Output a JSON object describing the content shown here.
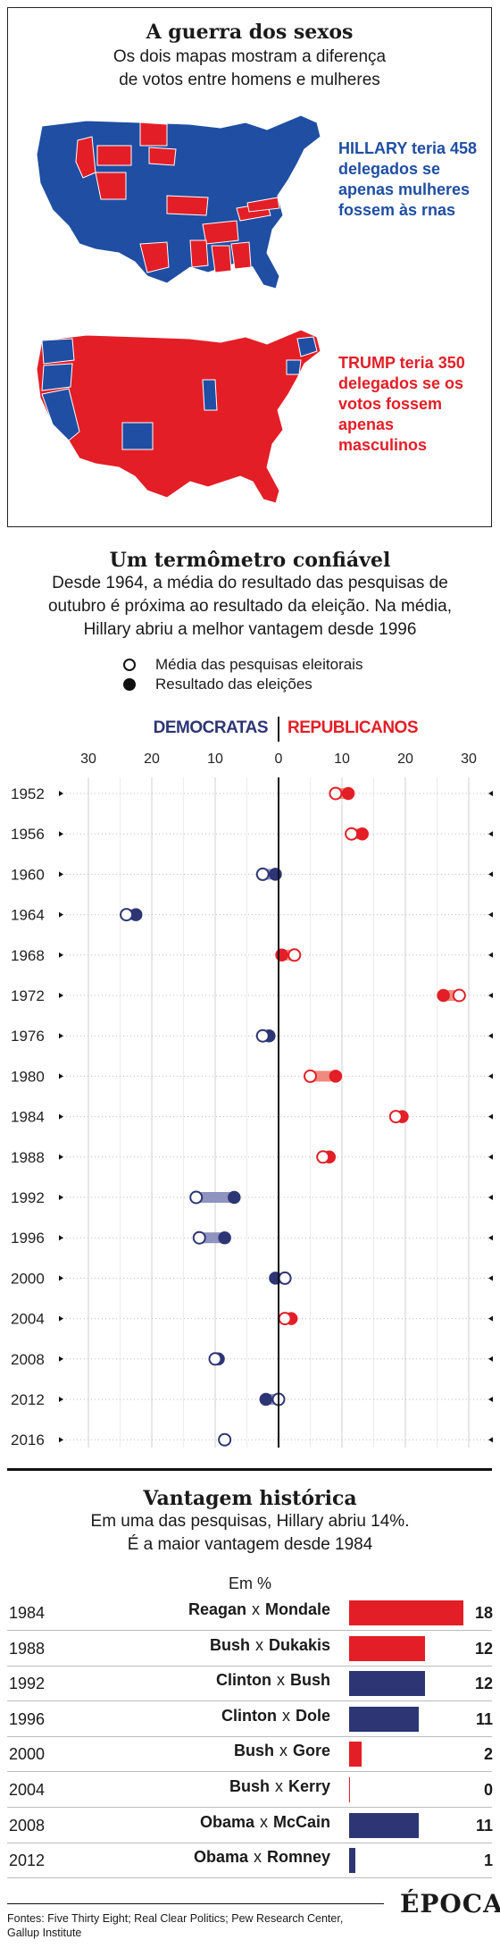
{
  "section1": {
    "title": "A guerra dos sexos",
    "subtitle_line1": "Os dois mapas mostram a diferença",
    "subtitle_line2": "de votos entre homens e mulheres",
    "map1_label": "HILLARY teria 458 delegados se apenas mulheres fossem às rnas",
    "map2_label": "TRUMP teria 350 delegados se os votos fossem apenas masculinos",
    "colors": {
      "democrat": "#1f4ea3",
      "republican": "#e31e26"
    }
  },
  "section2": {
    "title": "Um termômetro confiável",
    "desc_line1": "Desde 1964, a média do resultado das pesquisas de",
    "desc_line2": "outubro é próxima ao resultado da eleição. Na média,",
    "desc_line3": "Hillary abriu a melhor vantagem desde 1996",
    "legend_poll": "Média das pesquisas eleitorais",
    "legend_result": "Resultado das eleições",
    "dem_header": "DEMOCRATAS",
    "rep_header": "REPUBLICANOS"
  },
  "chart_data": [
    {
      "type": "scatter",
      "axis_ticks": [
        "30",
        "20",
        "10",
        "0",
        "10",
        "20",
        "30"
      ],
      "xlim": [
        -30,
        30
      ],
      "series": [
        {
          "name": "Média das pesquisas eleitorais",
          "marker": "open-circle"
        },
        {
          "name": "Resultado das eleições",
          "marker": "filled-circle"
        }
      ],
      "colors": {
        "dem": "#2d3575",
        "rep": "#e31e26",
        "dem_bar": "#8e93bf",
        "rep_bar": "#f08a7e"
      },
      "grid": true,
      "rows": [
        {
          "year": "1952",
          "poll": 9,
          "result": 11
        },
        {
          "year": "1956",
          "poll": 11.5,
          "result": 13.2
        },
        {
          "year": "1960",
          "poll": -2.5,
          "result": -0.5
        },
        {
          "year": "1964",
          "poll": -24,
          "result": -22.5
        },
        {
          "year": "1968",
          "poll": 2.5,
          "result": 0.5
        },
        {
          "year": "1972",
          "poll": 28.5,
          "result": 26
        },
        {
          "year": "1976",
          "poll": -2.5,
          "result": -1.5
        },
        {
          "year": "1980",
          "poll": 5,
          "result": 9
        },
        {
          "year": "1984",
          "poll": 18.5,
          "result": 19.5
        },
        {
          "year": "1988",
          "poll": 7,
          "result": 8
        },
        {
          "year": "1992",
          "poll": -13,
          "result": -7
        },
        {
          "year": "1996",
          "poll": -12.5,
          "result": -8.5
        },
        {
          "year": "2000",
          "poll": 1,
          "result": -0.5
        },
        {
          "year": "2004",
          "poll": 1,
          "result": 2
        },
        {
          "year": "2008",
          "poll": -10,
          "result": -9.5
        },
        {
          "year": "2012",
          "poll": 0,
          "result": -2
        },
        {
          "year": "2016",
          "poll": -8.5,
          "result": null
        }
      ]
    },
    {
      "type": "bar",
      "title": "Vantagem histórica",
      "subtitle_line1": "Em uma das pesquisas, Hillary abriu 14%.",
      "subtitle_line2": "É a maior vantagem desde 1984",
      "unit_label": "Em %",
      "xlim": [
        0,
        18
      ],
      "colors": {
        "rep": "#e31e26",
        "dem": "#2d3575"
      },
      "rows": [
        {
          "year": "1984",
          "winner": "Reagan",
          "loser": "Mondale",
          "value": 18,
          "value_label": "18",
          "party": "rep"
        },
        {
          "year": "1988",
          "winner": "Bush",
          "loser": "Dukakis",
          "value": 12,
          "value_label": "12",
          "party": "rep"
        },
        {
          "year": "1992",
          "winner": "Clinton",
          "loser": "Bush",
          "value": 12,
          "value_label": "12",
          "party": "dem"
        },
        {
          "year": "1996",
          "winner": "Clinton",
          "loser": "Dole",
          "value": 11,
          "value_label": "11",
          "party": "dem"
        },
        {
          "year": "2000",
          "winner": "Bush",
          "loser": "Gore",
          "value": 2,
          "value_label": "2",
          "party": "rep"
        },
        {
          "year": "2004",
          "winner": "Bush",
          "loser": "Kerry",
          "value": 0,
          "value_label": "0",
          "party": "rep"
        },
        {
          "year": "2008",
          "winner": "Obama",
          "loser": "McCain",
          "value": 11,
          "value_label": "11",
          "party": "dem"
        },
        {
          "year": "2012",
          "winner": "Obama",
          "loser": "Romney",
          "value": 1,
          "value_label": "1",
          "party": "dem"
        }
      ],
      "separator": "x"
    }
  ],
  "footer": {
    "sources": "Fontes: Five Thirty Eight; Real Clear Politics; Pew Research Center, Gallup Institute",
    "logo": "ÉPOCA"
  }
}
